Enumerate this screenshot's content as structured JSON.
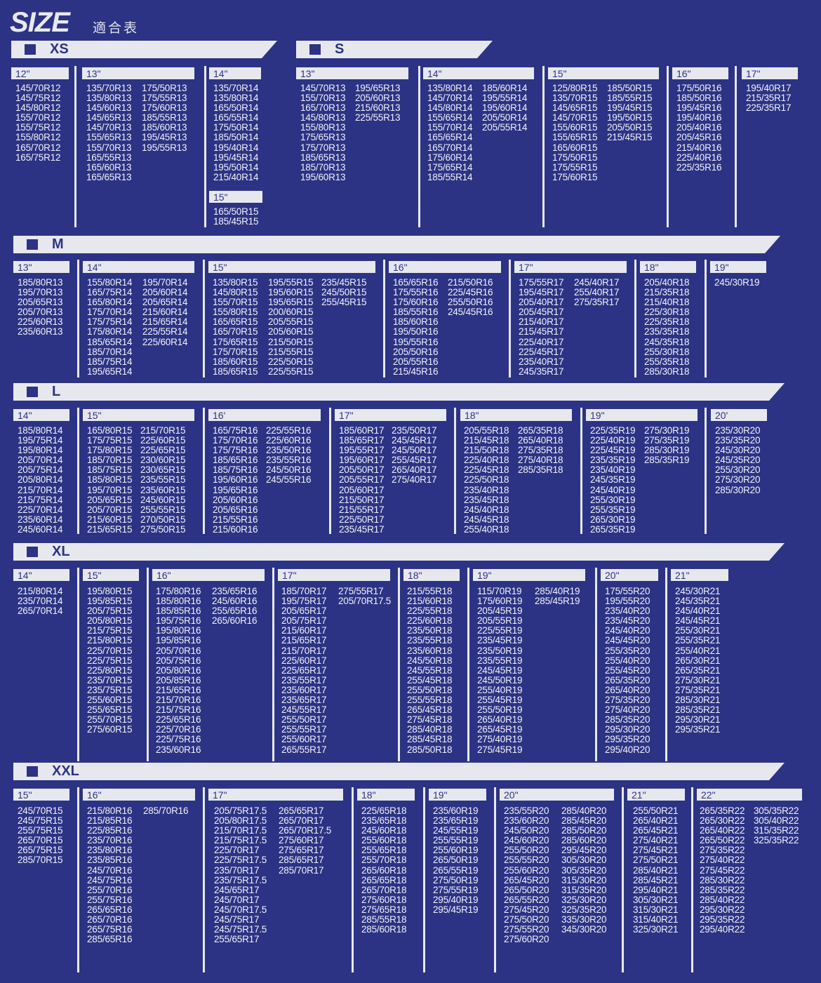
{
  "title": {
    "main": "SIZE",
    "sub": "適合表"
  },
  "sections": [
    {
      "label": "XS",
      "columns": [
        {
          "header": "12\"",
          "lists": [
            [
              "145/70R12",
              "145/75R12",
              "145/80R12",
              "155/70R12",
              "155/75R12",
              "155/80R12",
              "165/70R12",
              "165/75R12"
            ]
          ]
        },
        {
          "header": "13\"",
          "lists": [
            [
              "135/70R13",
              "135/80R13",
              "145/60R13",
              "145/65R13",
              "145/70R13",
              "155/65R13",
              "155/70R13",
              "165/55R13",
              "165/60R13",
              "165/65R13"
            ],
            [
              "175/50R13",
              "175/55R13",
              "175/60R13",
              "185/55R13",
              "185/60R13",
              "195/45R13",
              "195/55R13"
            ]
          ]
        },
        {
          "header": "14\"",
          "lists": [
            [
              "135/70R14",
              "135/80R14",
              "165/50R14",
              "165/55R14",
              "175/50R14",
              "185/50R14",
              "195/40R14",
              "195/45R14",
              "195/50R14",
              "215/40R14"
            ]
          ],
          "extra": {
            "header": "15\"",
            "list": [
              "165/50R15",
              "185/45R15"
            ]
          }
        }
      ]
    },
    {
      "label": "S",
      "columns": [
        {
          "header": "13\"",
          "lists": [
            [
              "145/70R13",
              "155/70R13",
              "165/70R13",
              "145/80R13",
              "155/80R13",
              "175/65R13",
              "175/70R13",
              "185/65R13",
              "185/70R13",
              "195/60R13"
            ],
            [
              "195/65R13",
              "205/60R13",
              "215/60R13",
              "225/55R13"
            ]
          ]
        },
        {
          "header": "14\"",
          "lists": [
            [
              "135/80R14",
              "145/70R14",
              "145/80R14",
              "155/65R14",
              "155/70R14",
              "165/65R14",
              "165/70R14",
              "175/60R14",
              "175/65R14",
              "185/55R14"
            ],
            [
              "185/60R14",
              "195/55R14",
              "195/60R14",
              "205/50R14",
              "205/55R14"
            ]
          ]
        },
        {
          "header": "15\"",
          "lists": [
            [
              "125/80R15",
              "135/70R15",
              "145/65R15",
              "145/70R15",
              "155/60R15",
              "155/65R15",
              "165/60R15",
              "175/50R15",
              "175/55R15",
              "175/60R15"
            ],
            [
              "185/50R15",
              "185/55R15",
              "195/45R15",
              "195/50R15",
              "205/50R15",
              "215/45R15"
            ]
          ]
        },
        {
          "header": "16\"",
          "lists": [
            [
              "175/50R16",
              "185/50R16",
              "195/45R16",
              "195/40R16",
              "205/40R16",
              "205/45R16",
              "215/40R16",
              "225/40R16",
              "225/35R16"
            ]
          ]
        },
        {
          "header": "17\"",
          "lists": [
            [
              "195/40R17",
              "215/35R17",
              "225/35R17"
            ]
          ]
        }
      ]
    },
    {
      "label": "M",
      "columns": [
        {
          "header": "13\"",
          "lists": [
            [
              "185/80R13",
              "195/70R13",
              "205/65R13",
              "205/70R13",
              "225/60R13",
              "235/60R13"
            ]
          ]
        },
        {
          "header": "14\"",
          "lists": [
            [
              "155/80R14",
              "165/75R14",
              "165/80R14",
              "175/70R14",
              "175/75R14",
              "175/80R14",
              "185/65R14",
              "185/70R14",
              "185/75R14",
              "195/65R14"
            ],
            [
              "195/70R14",
              "205/60R14",
              "205/65R14",
              "215/60R14",
              "215/65R14",
              "225/55R14",
              "225/60R14"
            ]
          ]
        },
        {
          "header": "15\"",
          "lists": [
            [
              "135/80R15",
              "145/80R15",
              "155/70R15",
              "155/80R15",
              "165/65R15",
              "165/70R15",
              "175/65R15",
              "175/70R15",
              "185/60R15",
              "185/65R15"
            ],
            [
              "195/55R15",
              "195/60R15",
              "195/65R15",
              "200/60R15",
              "205/55R15",
              "205/60R15",
              "215/50R15",
              "215/55R15",
              "225/50R15",
              "225/55R15"
            ],
            [
              "235/45R15",
              "245/50R15",
              "255/45R15"
            ]
          ]
        },
        {
          "header": "16\"",
          "lists": [
            [
              "165/65R16",
              "175/55R16",
              "175/60R16",
              "185/55R16",
              "185/60R16",
              "195/50R16",
              "195/55R16",
              "205/50R16",
              "205/55R16",
              "215/45R16"
            ],
            [
              "215/50R16",
              "225/45R16",
              "255/50R16",
              "245/45R16"
            ]
          ]
        },
        {
          "header": "17\"",
          "lists": [
            [
              "175/55R17",
              "195/45R17",
              "205/40R17",
              "205/45R17",
              "215/40R17",
              "215/45R17",
              "225/40R17",
              "225/45R17",
              "235/40R17",
              "245/35R17"
            ],
            [
              "245/40R17",
              "255/40R17",
              "275/35R17"
            ]
          ]
        },
        {
          "header": "18\"",
          "lists": [
            [
              "205/40R18",
              "215/35R18",
              "215/40R18",
              "225/30R18",
              "225/35R18",
              "235/35R18",
              "245/35R18",
              "255/30R18",
              "255/35R18",
              "285/30R18"
            ]
          ]
        },
        {
          "header": "19\"",
          "lists": [
            [
              "245/30R19"
            ]
          ]
        }
      ]
    },
    {
      "label": "L",
      "columns": [
        {
          "header": "14\"",
          "lists": [
            [
              "185/80R14",
              "195/75R14",
              "195/80R14",
              "205/70R14",
              "205/75R14",
              "205/80R14",
              "215/70R14",
              "215/75R14",
              "225/70R14",
              "235/60R14",
              "245/60R14"
            ]
          ]
        },
        {
          "header": "15\"",
          "lists": [
            [
              "165/80R15",
              "175/75R15",
              "175/80R15",
              "185/70R15",
              "185/75R15",
              "185/80R15",
              "195/70R15",
              "205/65R15",
              "205/70R15",
              "215/60R15",
              "215/65R15"
            ],
            [
              "215/70R15",
              "225/60R15",
              "225/65R15",
              "230/60R15",
              "230/65R15",
              "235/55R15",
              "235/60R15",
              "245/60R15",
              "255/55R15",
              "270/50R15",
              "275/50R15"
            ]
          ]
        },
        {
          "header": "16'",
          "lists": [
            [
              "165/75R16",
              "175/70R16",
              "175/75R16",
              "185/65R16",
              "185/75R16",
              "195/60R16",
              "195/65R16",
              "205/60R16",
              "205/65R16",
              "215/55R16",
              "215/60R16"
            ],
            [
              "225/55R16",
              "225/60R16",
              "235/50R16",
              "235/55R16",
              "245/50R16",
              "245/55R16"
            ]
          ]
        },
        {
          "header": "17\"",
          "lists": [
            [
              "185/60R17",
              "185/65R17",
              "195/55R17",
              "195/60R17",
              "205/50R17",
              "205/55R17",
              "205/60R17",
              "215/50R17",
              "215/55R17",
              "225/50R17",
              "235/45R17"
            ],
            [
              "235/50R17",
              "245/45R17",
              "245/50R17",
              "255/45R17",
              "265/40R17",
              "275/40R17"
            ]
          ]
        },
        {
          "header": "18\"",
          "lists": [
            [
              "205/55R18",
              "215/45R18",
              "215/50R18",
              "225/40R18",
              "225/45R18",
              "225/50R18",
              "235/40R18",
              "235/45R18",
              "245/40R18",
              "245/45R18",
              "255/40R18"
            ],
            [
              "265/35R18",
              "265/40R18",
              "275/35R18",
              "275/40R18",
              "285/35R18"
            ]
          ]
        },
        {
          "header": "19\"",
          "lists": [
            [
              "225/35R19",
              "225/40R19",
              "225/45R19",
              "235/35R19",
              "235/40R19",
              "245/35R19",
              "245/40R19",
              "255/30R19",
              "255/35R19",
              "265/30R19",
              "265/35R19"
            ],
            [
              "275/30R19",
              "275/35R19",
              "285/30R19",
              "285/35R19"
            ]
          ]
        },
        {
          "header": "20'",
          "lists": [
            [
              "235/30R20",
              "235/35R20",
              "245/30R20",
              "245/35R20",
              "255/30R20",
              "275/30R20",
              "285/30R20"
            ]
          ]
        }
      ]
    },
    {
      "label": "XL",
      "columns": [
        {
          "header": "14\"",
          "lists": [
            [
              "215/80R14",
              "235/70R14",
              "265/70R14"
            ]
          ]
        },
        {
          "header": "15\"",
          "lists": [
            [
              "195/80R15",
              "195/85R15",
              "205/75R15",
              "205/80R15",
              "215/75R15",
              "215/80R15",
              "225/70R15",
              "225/75R15",
              "225/80R15",
              "235/70R15",
              "235/75R15",
              "255/60R15",
              "255/65R15",
              "255/70R15",
              "275/60R15"
            ]
          ]
        },
        {
          "header": "16\"",
          "lists": [
            [
              "175/80R16",
              "185/80R16",
              "185/85R16",
              "195/75R16",
              "195/80R16",
              "195/85R16",
              "205/70R16",
              "205/75R16",
              "205/80R16",
              "205/85R16",
              "215/65R16",
              "215/70R16",
              "215/75R16",
              "225/65R16",
              "225/70R16",
              "225/75R16",
              "235/60R16"
            ],
            [
              "235/65R16",
              "245/60R16",
              "255/65R16",
              "265/60R16"
            ]
          ]
        },
        {
          "header": "17\"",
          "lists": [
            [
              "185/70R17",
              "195/75R17",
              "205/65R17",
              "205/75R17",
              "215/60R17",
              "215/65R17",
              "215/70R17",
              "225/60R17",
              "225/65R17",
              "235/55R17",
              "235/60R17",
              "235/65R17",
              "245/55R17",
              "255/50R17",
              "255/55R17",
              "255/60R17",
              "265/55R17"
            ],
            [
              "275/55R17",
              "205/70R17.5"
            ]
          ]
        },
        {
          "header": "18\"",
          "lists": [
            [
              "215/55R18",
              "215/60R18",
              "225/55R18",
              "225/60R18",
              "235/50R18",
              "235/55R18",
              "235/60R18",
              "245/50R18",
              "245/55R18",
              "255/45R18",
              "255/50R18",
              "255/55R18",
              "265/45R18",
              "275/45R18",
              "285/40R18",
              "285/45R18",
              "285/50R18"
            ]
          ]
        },
        {
          "header": "19\"",
          "lists": [
            [
              "115/70R19",
              "175/60R19",
              "205/45R19",
              "205/55R19",
              "225/55R19",
              "235/45R19",
              "235/50R19",
              "235/55R19",
              "245/45R19",
              "245/50R19",
              "255/40R19",
              "255/45R19",
              "255/50R19",
              "265/40R19",
              "265/45R19",
              "275/40R19",
              "275/45R19"
            ],
            [
              "285/40R19",
              "285/45R19"
            ]
          ]
        },
        {
          "header": "20\"",
          "lists": [
            [
              "175/55R20",
              "195/55R20",
              "235/40R20",
              "235/45R20",
              "245/40R20",
              "245/45R20",
              "255/35R20",
              "255/40R20",
              "255/45R20",
              "265/35R20",
              "265/40R20",
              "275/35R20",
              "275/40R20",
              "285/35R20",
              "295/30R20",
              "295/35R20",
              "295/40R20"
            ]
          ]
        },
        {
          "header": "21\"",
          "lists": [
            [
              "245/30R21",
              "245/35R21",
              "245/40R21",
              "245/45R21",
              "255/30R21",
              "255/35R21",
              "255/40R21",
              "265/30R21",
              "265/35R21",
              "275/30R21",
              "275/35R21",
              "285/30R21",
              "285/35R21",
              "295/30R21",
              "295/35R21"
            ]
          ]
        }
      ]
    },
    {
      "label": "XXL",
      "columns": [
        {
          "header": "15\"",
          "lists": [
            [
              "245/70R15",
              "245/75R15",
              "255/75R15",
              "265/70R15",
              "265/75R15",
              "285/70R15"
            ]
          ]
        },
        {
          "header": "16\"",
          "lists": [
            [
              "215/80R16",
              "215/85R16",
              "225/85R16",
              "235/70R16",
              "235/80R16",
              "235/85R16",
              "245/70R16",
              "245/75R16",
              "255/70R16",
              "255/75R16",
              "265/65R16",
              "265/70R16",
              "265/75R16",
              "285/65R16"
            ],
            [
              "285/70R16"
            ]
          ]
        },
        {
          "header": "17\"",
          "lists": [
            [
              "205/75R17.5",
              "205/80R17.5",
              "215/70R17.5",
              "215/75R17.5",
              "225/70R17",
              "225/75R17.5",
              "235/70R17",
              "235/75R17.5",
              "245/65R17",
              "245/70R17",
              "245/70R17.5",
              "245/75R17",
              "245/75R17.5",
              "255/65R17"
            ],
            [
              "265/65R17",
              "265/70R17",
              "265/70R17.5",
              "275/60R17",
              "275/65R17",
              "285/65R17",
              "285/70R17"
            ]
          ]
        },
        {
          "header": "18\"",
          "lists": [
            [
              "225/65R18",
              "235/65R18",
              "245/60R18",
              "255/60R18",
              "255/65R18",
              "255/70R18",
              "265/60R18",
              "265/65R18",
              "265/70R18",
              "275/60R18",
              "275/65R18",
              "285/55R18",
              "285/60R18"
            ]
          ]
        },
        {
          "header": "19\"",
          "lists": [
            [
              "235/60R19",
              "235/65R19",
              "245/55R19",
              "255/55R19",
              "255/60R19",
              "265/50R19",
              "265/55R19",
              "275/50R19",
              "275/55R19",
              "295/40R19",
              "295/45R19"
            ]
          ]
        },
        {
          "header": "20\"",
          "lists": [
            [
              "235/55R20",
              "235/60R20",
              "245/50R20",
              "245/60R20",
              "255/50R20",
              "255/55R20",
              "255/60R20",
              "265/45R20",
              "265/50R20",
              "265/55R20",
              "275/45R20",
              "275/50R20",
              "275/55R20",
              "275/60R20"
            ],
            [
              "285/40R20",
              "285/45R20",
              "285/50R20",
              "285/60R20",
              "295/45R20",
              "305/30R20",
              "305/35R20",
              "315/30R20",
              "315/35R20",
              "325/30R20",
              "325/35R20",
              "335/30R20",
              "345/30R20"
            ]
          ]
        },
        {
          "header": "21\"",
          "lists": [
            [
              "255/50R21",
              "265/40R21",
              "265/45R21",
              "275/40R21",
              "275/45R21",
              "275/50R21",
              "285/40R21",
              "285/45R21",
              "295/40R21",
              "305/30R21",
              "315/30R21",
              "315/40R21",
              "325/30R21"
            ]
          ]
        },
        {
          "header": "22\"",
          "lists": [
            [
              "265/35R22",
              "265/30R22",
              "265/40R22",
              "265/50R22",
              "275/35R22",
              "275/40R22",
              "275/45R22",
              "285/30R22",
              "285/35R22",
              "285/40R22",
              "295/30R22",
              "295/35R22",
              "295/40R22"
            ],
            [
              "305/35R22",
              "305/40R22",
              "315/35R22",
              "325/35R22"
            ]
          ]
        }
      ]
    }
  ]
}
